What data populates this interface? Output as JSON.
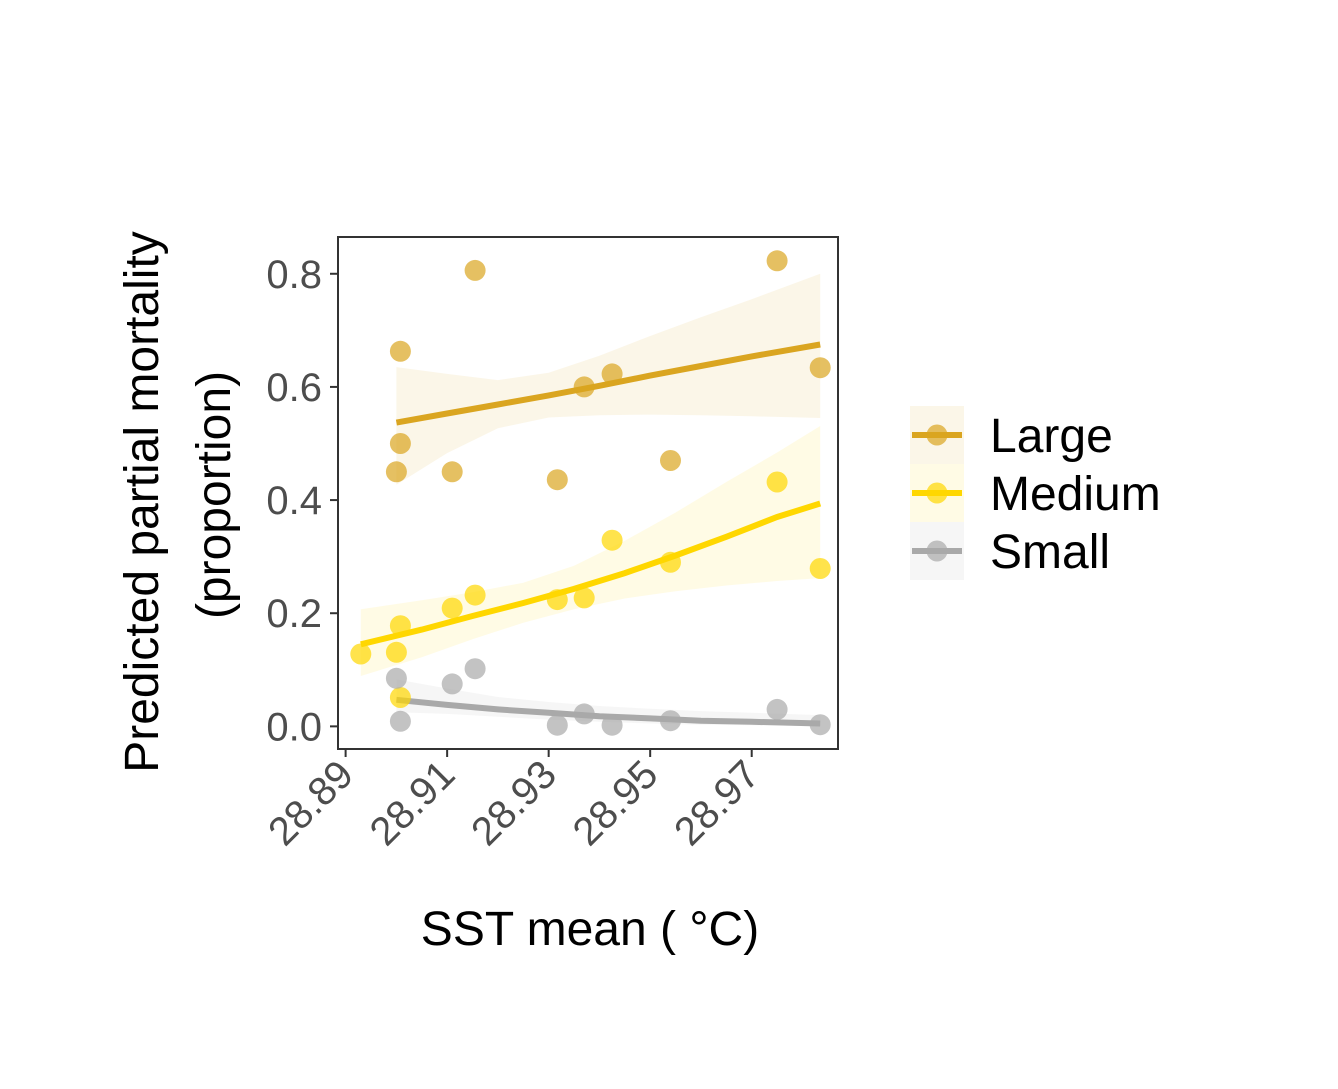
{
  "chart_data": {
    "type": "scatter",
    "title": "",
    "xlabel": "SST mean ( °C)",
    "ylabel_lines": [
      "Predicted partial mortality",
      "(proportion)"
    ],
    "xlim": [
      28.8885,
      28.987
    ],
    "ylim": [
      -0.04,
      0.865
    ],
    "xticks": [
      28.89,
      28.91,
      28.93,
      28.95,
      28.97
    ],
    "xtick_labels": [
      "28.89",
      "28.91",
      "28.93",
      "28.95",
      "28.97"
    ],
    "yticks": [
      0.0,
      0.2,
      0.4,
      0.6,
      0.8
    ],
    "ytick_labels": [
      "0.0",
      "0.2",
      "0.4",
      "0.6",
      "0.8"
    ],
    "grid": false,
    "legend_position": "right",
    "series": [
      {
        "name": "Large",
        "color": "#DAA520",
        "points": [
          {
            "x": 28.9,
            "y": 0.45
          },
          {
            "x": 28.9008,
            "y": 0.663
          },
          {
            "x": 28.9008,
            "y": 0.5
          },
          {
            "x": 28.911,
            "y": 0.45
          },
          {
            "x": 28.9155,
            "y": 0.806
          },
          {
            "x": 28.9317,
            "y": 0.436
          },
          {
            "x": 28.937,
            "y": 0.6
          },
          {
            "x": 28.9425,
            "y": 0.623
          },
          {
            "x": 28.954,
            "y": 0.47
          },
          {
            "x": 28.975,
            "y": 0.823
          },
          {
            "x": 28.9835,
            "y": 0.634
          }
        ],
        "fit": {
          "x": [
            28.9,
            28.91,
            28.92,
            28.93,
            28.94,
            28.95,
            28.96,
            28.97,
            28.9835
          ],
          "y": [
            0.537,
            0.553,
            0.569,
            0.585,
            0.602,
            0.62,
            0.637,
            0.654,
            0.675
          ],
          "lower": [
            0.427,
            0.483,
            0.527,
            0.546,
            0.55,
            0.551,
            0.55,
            0.548,
            0.545
          ],
          "upper": [
            0.635,
            0.623,
            0.612,
            0.625,
            0.655,
            0.69,
            0.723,
            0.755,
            0.8
          ]
        }
      },
      {
        "name": "Medium",
        "color": "#FFD700",
        "points": [
          {
            "x": 28.893,
            "y": 0.128
          },
          {
            "x": 28.9,
            "y": 0.131
          },
          {
            "x": 28.9008,
            "y": 0.178
          },
          {
            "x": 28.9008,
            "y": 0.051
          },
          {
            "x": 28.911,
            "y": 0.209
          },
          {
            "x": 28.9155,
            "y": 0.232
          },
          {
            "x": 28.9317,
            "y": 0.224
          },
          {
            "x": 28.937,
            "y": 0.227
          },
          {
            "x": 28.9425,
            "y": 0.329
          },
          {
            "x": 28.954,
            "y": 0.29
          },
          {
            "x": 28.975,
            "y": 0.432
          },
          {
            "x": 28.9835,
            "y": 0.279
          }
        ],
        "fit": {
          "x": [
            28.893,
            28.905,
            28.915,
            28.925,
            28.935,
            28.945,
            28.955,
            28.965,
            28.975,
            28.9835
          ],
          "y": [
            0.145,
            0.171,
            0.195,
            0.218,
            0.243,
            0.271,
            0.302,
            0.335,
            0.37,
            0.394
          ],
          "lower": [
            0.089,
            0.122,
            0.154,
            0.183,
            0.207,
            0.226,
            0.239,
            0.249,
            0.257,
            0.262
          ],
          "upper": [
            0.207,
            0.223,
            0.237,
            0.254,
            0.284,
            0.328,
            0.378,
            0.432,
            0.484,
            0.531
          ]
        }
      },
      {
        "name": "Small",
        "color": "#A9A9A9",
        "points": [
          {
            "x": 28.9,
            "y": 0.085
          },
          {
            "x": 28.9008,
            "y": 0.009
          },
          {
            "x": 28.911,
            "y": 0.075
          },
          {
            "x": 28.9155,
            "y": 0.102
          },
          {
            "x": 28.9317,
            "y": 0.002
          },
          {
            "x": 28.937,
            "y": 0.022
          },
          {
            "x": 28.9425,
            "y": 0.002
          },
          {
            "x": 28.954,
            "y": 0.01
          },
          {
            "x": 28.975,
            "y": 0.03
          },
          {
            "x": 28.9835,
            "y": 0.003
          }
        ],
        "fit": {
          "x": [
            28.9,
            28.91,
            28.92,
            28.93,
            28.94,
            28.95,
            28.96,
            28.97,
            28.9835
          ],
          "y": [
            0.047,
            0.038,
            0.03,
            0.024,
            0.018,
            0.014,
            0.01,
            0.008,
            0.005
          ],
          "lower": [
            0.025,
            0.022,
            0.017,
            0.012,
            0.008,
            0.005,
            0.003,
            0.002,
            0.001
          ],
          "upper": [
            0.083,
            0.067,
            0.052,
            0.043,
            0.036,
            0.031,
            0.027,
            0.024,
            0.02
          ]
        }
      }
    ]
  }
}
